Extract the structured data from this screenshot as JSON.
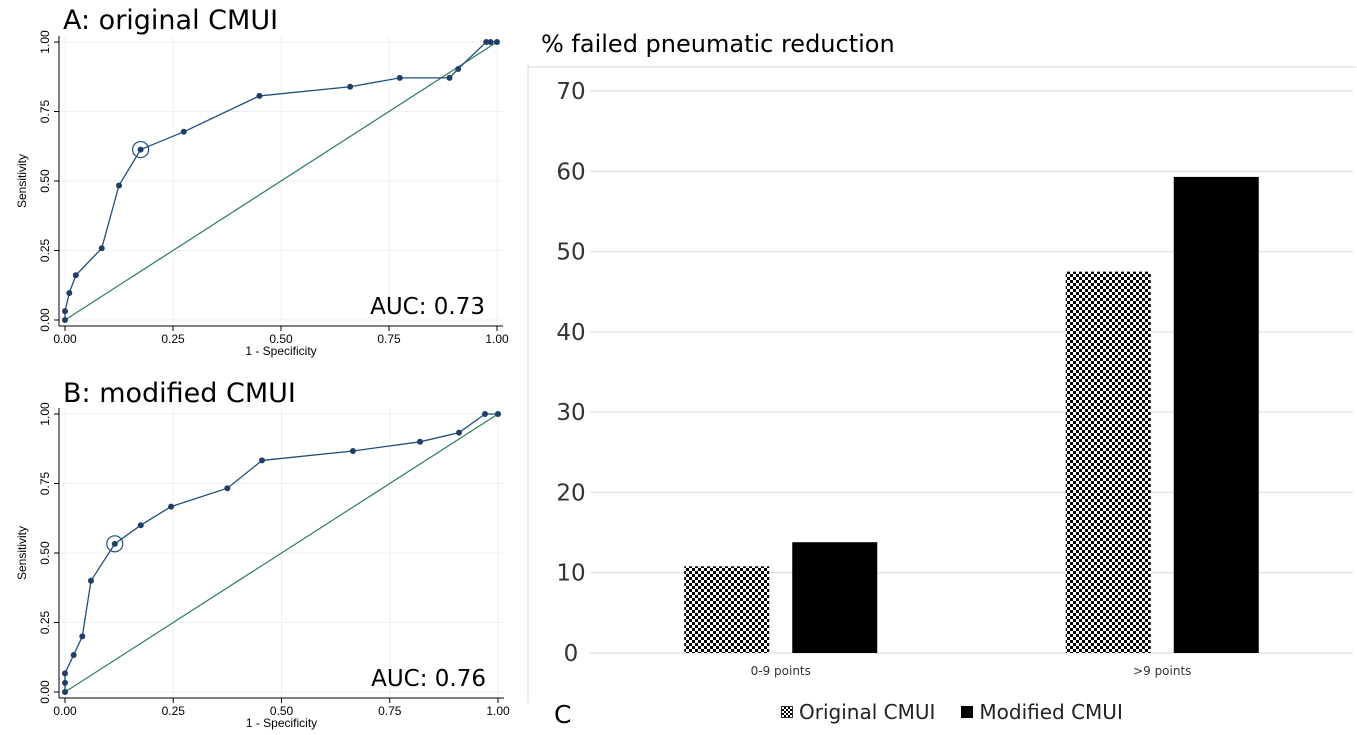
{
  "chart_data": [
    {
      "type": "line",
      "panel_title": "A: original CMUI",
      "xlabel": "1 - Specificity",
      "ylabel": "Sensitivity",
      "xlim": [
        0,
        1
      ],
      "ylim": [
        0,
        1
      ],
      "x_ticks": [
        "0.00",
        "0.25",
        "0.50",
        "0.75",
        "1.00"
      ],
      "y_ticks": [
        "0.00",
        "0.25",
        "0.50",
        "0.75",
        "1.00"
      ],
      "annotation": "AUC: 0.73",
      "series": [
        {
          "x": [
            0,
            0,
            0.01,
            0.025,
            0.085,
            0.125,
            0.175,
            0.275,
            0.45,
            0.66,
            0.775,
            0.89,
            0.91,
            0.975,
            0.985,
            1.0
          ],
          "y": [
            0,
            0.032,
            0.097,
            0.161,
            0.258,
            0.484,
            0.613,
            0.677,
            0.806,
            0.839,
            0.871,
            0.871,
            0.903,
            1.0,
            1.0,
            1.0
          ]
        }
      ],
      "highlighted_point": {
        "x": 0.175,
        "y": 0.613
      },
      "reference_line": {
        "x": [
          0,
          1
        ],
        "y": [
          0,
          1
        ]
      },
      "grid": true
    },
    {
      "type": "line",
      "panel_title": "B: modified CMUI",
      "xlabel": "1 - Specificity",
      "ylabel": "Sensitivity",
      "xlim": [
        0,
        1
      ],
      "ylim": [
        0,
        1
      ],
      "x_ticks": [
        "0.00",
        "0.25",
        "0.50",
        "0.75",
        "1.00"
      ],
      "y_ticks": [
        "0.00",
        "0.25",
        "0.50",
        "0.75",
        "1.00"
      ],
      "annotation": "AUC: 0.76",
      "series": [
        {
          "x": [
            0,
            0,
            0,
            0.02,
            0.04,
            0.06,
            0.115,
            0.175,
            0.245,
            0.375,
            0.455,
            0.665,
            0.82,
            0.91,
            0.97,
            1.0
          ],
          "y": [
            0,
            0.033,
            0.067,
            0.133,
            0.2,
            0.4,
            0.533,
            0.6,
            0.667,
            0.733,
            0.833,
            0.867,
            0.9,
            0.933,
            1.0,
            1.0
          ]
        }
      ],
      "highlighted_point": {
        "x": 0.115,
        "y": 0.533
      },
      "reference_line": {
        "x": [
          0,
          1
        ],
        "y": [
          0,
          1
        ]
      },
      "grid": true
    },
    {
      "type": "bar",
      "title": "% failed pneumatic reduction",
      "panel_letter": "C",
      "categories": [
        "0-9 points",
        ">9 points"
      ],
      "series": [
        {
          "name": "Original CMUI",
          "values": [
            10.8,
            47.5
          ],
          "pattern": "checkerboard"
        },
        {
          "name": "Modified CMUI",
          "values": [
            13.8,
            59.3
          ],
          "pattern": "solid",
          "color": "#000000"
        }
      ],
      "ylim": [
        0,
        70
      ],
      "y_ticks": [
        "0",
        "10",
        "20",
        "30",
        "40",
        "50",
        "60",
        "70"
      ],
      "legend_position": "bottom",
      "grid": true
    }
  ],
  "colors": {
    "roc_line": "#1f4e79",
    "roc_marker": "#1f3f66",
    "reference_line": "#2e7d5b",
    "bar_solid": "#000000",
    "grid_c": "#d9d9d9",
    "grid_ab": "#eaf0f5"
  }
}
